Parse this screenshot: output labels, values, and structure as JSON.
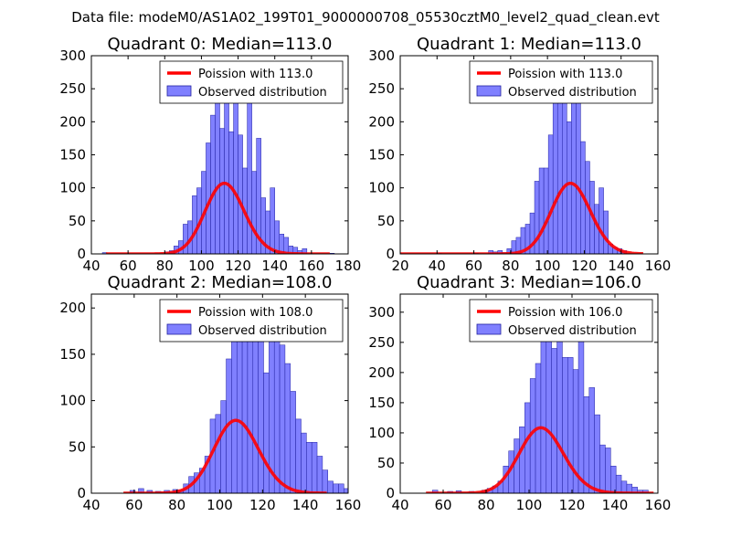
{
  "figure_title": "Data file: modeM0/AS1A02_199T01_9000000708_05530cztM0_level2_quad_clean.evt",
  "colors": {
    "poisson": "#ff0000",
    "hist_fill": "#8080ff",
    "hist_edge": "#2020a0"
  },
  "chart_data": [
    {
      "type": "bar",
      "title": "Quadrant 0: Median=113.0",
      "xlim": [
        40,
        180
      ],
      "ylim": [
        0,
        300
      ],
      "xticks": [
        40,
        60,
        80,
        100,
        120,
        140,
        160,
        180
      ],
      "yticks": [
        0,
        50,
        100,
        150,
        200,
        250,
        300
      ],
      "legend": {
        "position": "top-right",
        "entries": [
          "Poission with 113.0",
          "Observed distribution"
        ]
      },
      "bin_start": 80,
      "bin_width": 2.5,
      "hist": [
        3,
        5,
        12,
        20,
        45,
        50,
        88,
        100,
        125,
        168,
        210,
        245,
        190,
        285,
        185,
        235,
        180,
        130,
        280,
        125,
        175,
        85,
        65,
        100,
        50,
        30,
        25,
        12,
        10,
        5,
        8
      ],
      "extra_bins": [
        [
          46,
          2
        ],
        [
          170,
          1
        ]
      ],
      "poisson": {
        "mean": 113.0,
        "scale": 2850,
        "x_range": [
          48,
          170
        ]
      }
    },
    {
      "type": "bar",
      "title": "Quadrant 1: Median=113.0",
      "xlim": [
        20,
        160
      ],
      "ylim": [
        0,
        300
      ],
      "xticks": [
        20,
        40,
        60,
        80,
        100,
        120,
        140,
        160
      ],
      "yticks": [
        0,
        50,
        100,
        150,
        200,
        250,
        300
      ],
      "legend": {
        "position": "top-right",
        "entries": [
          "Poission with 113.0",
          "Observed distribution"
        ]
      },
      "bin_start": 68,
      "bin_width": 2.5,
      "hist": [
        5,
        3,
        5,
        2,
        8,
        20,
        25,
        40,
        45,
        62,
        110,
        130,
        130,
        180,
        240,
        275,
        260,
        200,
        250,
        280,
        170,
        140,
        110,
        75,
        100,
        65,
        15,
        10,
        8,
        5
      ],
      "extra_bins": [
        [
          40,
          1
        ],
        [
          60,
          1
        ]
      ],
      "poisson": {
        "mean": 113.0,
        "scale": 2850,
        "x_range": [
          20,
          152
        ]
      }
    },
    {
      "type": "bar",
      "title": "Quadrant 2: Median=108.0",
      "xlim": [
        40,
        160
      ],
      "ylim": [
        0,
        215
      ],
      "xticks": [
        40,
        60,
        80,
        100,
        120,
        140,
        160
      ],
      "yticks": [
        0,
        50,
        100,
        150,
        200
      ],
      "legend": {
        "position": "top-right",
        "entries": [
          "Poission with 108.0",
          "Observed distribution"
        ]
      },
      "bin_start": 78,
      "bin_width": 2.5,
      "hist": [
        4,
        3,
        10,
        18,
        22,
        27,
        40,
        80,
        85,
        100,
        145,
        165,
        178,
        195,
        187,
        200,
        180,
        130,
        175,
        195,
        160,
        140,
        110,
        80,
        65,
        55,
        55,
        40,
        25,
        13,
        10,
        10,
        5,
        5
      ],
      "extra_bins": [
        [
          58,
          3
        ],
        [
          62,
          5
        ],
        [
          66,
          3
        ],
        [
          70,
          2
        ],
        [
          74,
          3
        ]
      ],
      "poisson": {
        "mean": 108.0,
        "scale": 2050,
        "x_range": [
          55,
          150
        ]
      }
    },
    {
      "type": "bar",
      "title": "Quadrant 3: Median=106.0",
      "xlim": [
        40,
        160
      ],
      "ylim": [
        0,
        330
      ],
      "xticks": [
        40,
        60,
        80,
        100,
        120,
        140,
        160
      ],
      "yticks": [
        0,
        50,
        100,
        150,
        200,
        250,
        300
      ],
      "legend": {
        "position": "top-right",
        "entries": [
          "Poission with 106.0",
          "Observed distribution"
        ]
      },
      "bin_start": 78,
      "bin_width": 2.5,
      "hist": [
        5,
        8,
        12,
        20,
        45,
        70,
        90,
        110,
        150,
        190,
        215,
        255,
        265,
        240,
        255,
        225,
        225,
        205,
        270,
        160,
        175,
        130,
        80,
        75,
        45,
        30,
        20,
        15,
        10,
        5,
        5
      ],
      "extra_bins": [
        [
          55,
          5
        ],
        [
          62,
          3
        ],
        [
          66,
          4
        ],
        [
          72,
          3
        ]
      ],
      "poisson": {
        "mean": 106.0,
        "scale": 2800,
        "x_range": [
          52,
          158
        ]
      }
    }
  ]
}
